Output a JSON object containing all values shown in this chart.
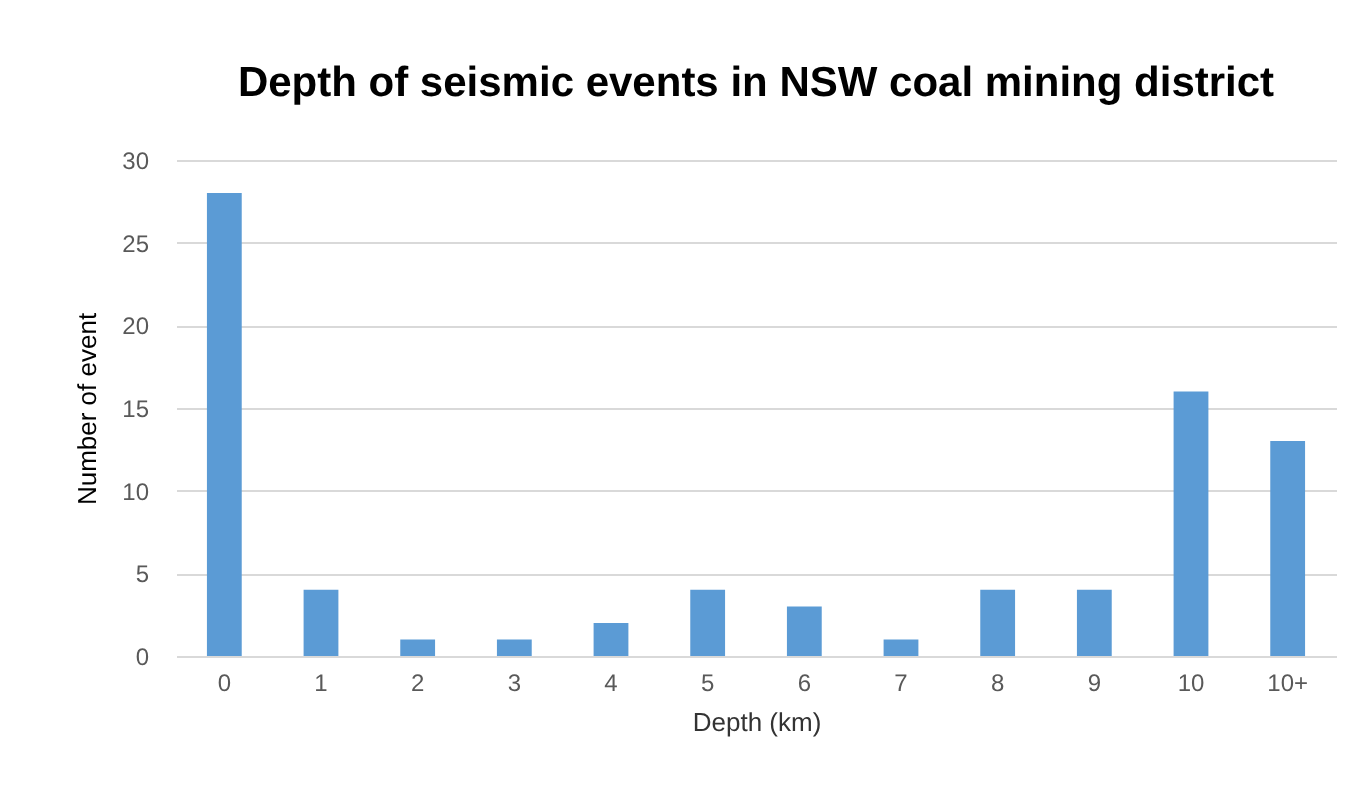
{
  "chart_data": {
    "type": "bar",
    "title": "Depth of seismic events in NSW coal mining district",
    "xlabel": "Depth (km)",
    "ylabel": "Number of event",
    "categories": [
      "0",
      "1",
      "2",
      "3",
      "4",
      "5",
      "6",
      "7",
      "8",
      "9",
      "10",
      "10+"
    ],
    "values": [
      28,
      4,
      1,
      1,
      2,
      4,
      3,
      1,
      4,
      4,
      16,
      13
    ],
    "color": "#5b9bd5",
    "ylim": [
      0,
      30
    ],
    "yticks": [
      0,
      5,
      10,
      15,
      20,
      25,
      30
    ],
    "grid": "y"
  }
}
